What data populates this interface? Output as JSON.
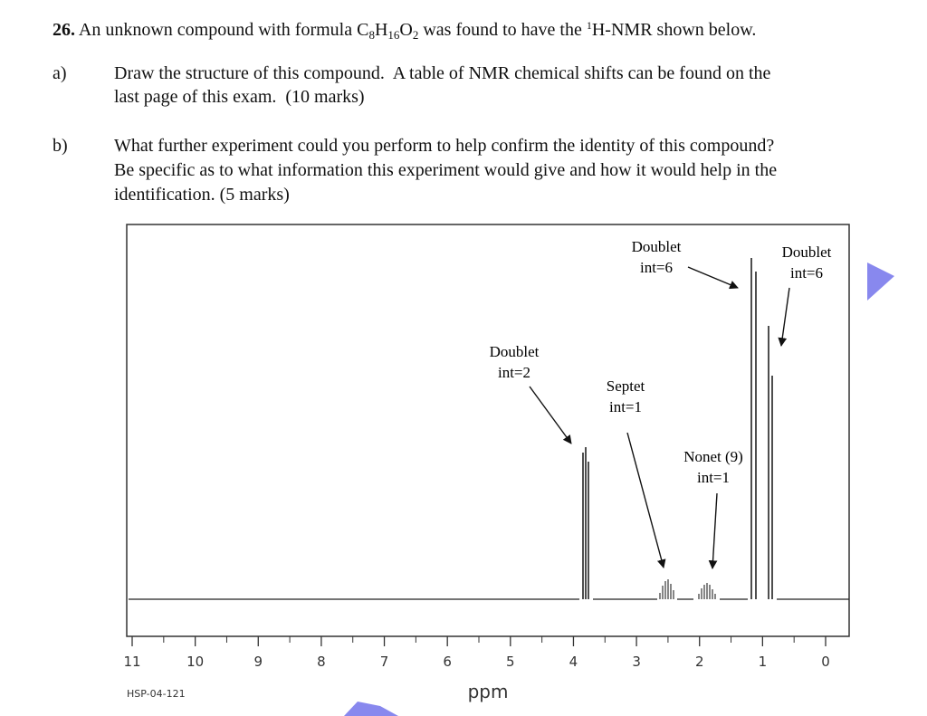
{
  "question": {
    "number": "26.",
    "parts": [
      "An unknown compound with formula C",
      "8",
      "H",
      "16",
      "O",
      "2",
      " was found to have the ",
      "1",
      "H-NMR shown below."
    ]
  },
  "items": [
    {
      "label": "a)",
      "lines": [
        "Draw the structure of this compound.  A table of NMR chemical shifts can be found on the",
        "last page of this exam.  (10 marks)"
      ]
    },
    {
      "label": "b)",
      "lines": [
        "What further experiment could you perform to help confirm the identity of this compound?",
        "Be specific as to what information this experiment would give and how it would help in the",
        "identification. (5 marks)"
      ]
    }
  ],
  "spectrum": {
    "xticks": [
      11,
      10,
      9,
      8,
      7,
      6,
      5,
      4,
      3,
      2,
      1,
      0
    ],
    "xlabel": "ppm",
    "code": "HSP-04-121",
    "annotations": [
      [
        "Doublet",
        "int=6"
      ],
      [
        "Doublet",
        "int=6"
      ],
      [
        "Doublet",
        "int=2"
      ],
      [
        "Septet",
        "int=1"
      ],
      [
        "Nonet (9)",
        "int=1"
      ]
    ]
  }
}
